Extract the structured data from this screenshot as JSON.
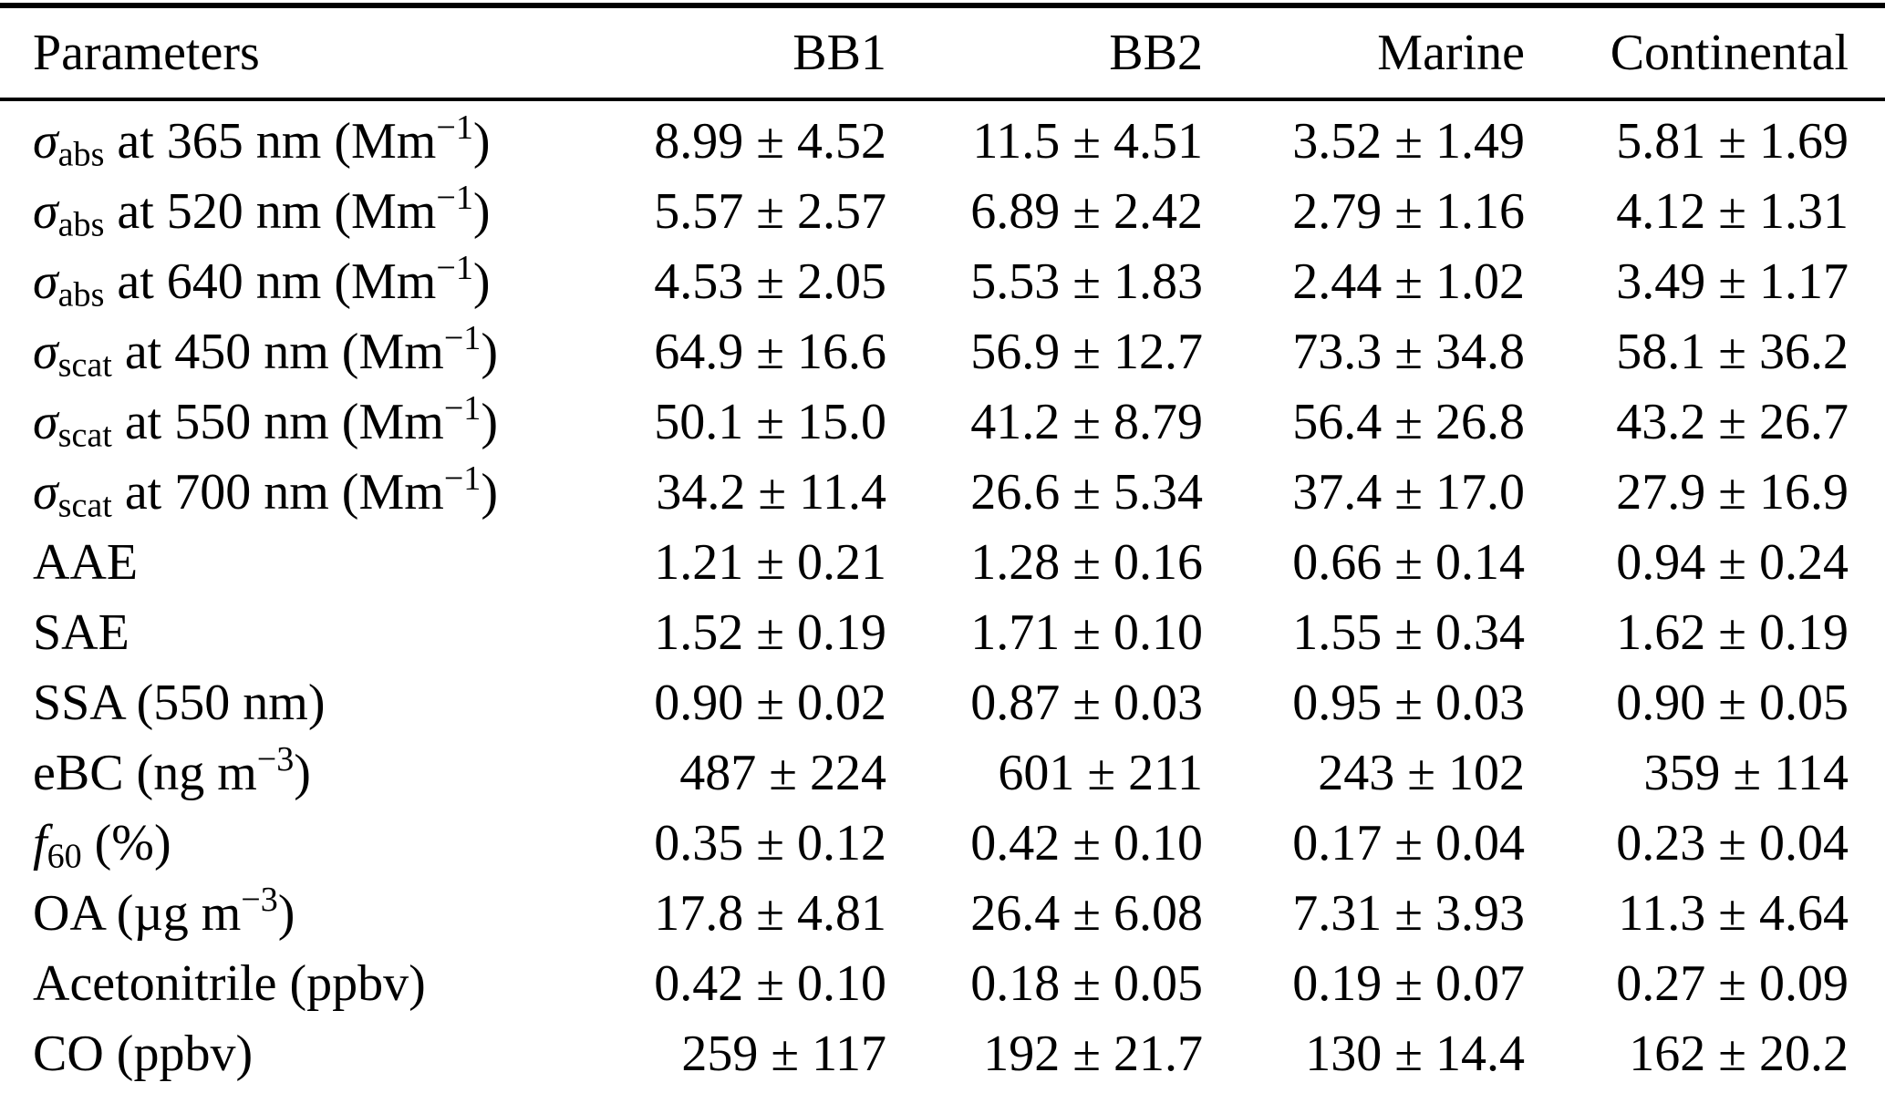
{
  "page": {
    "background_color": "#ffffff",
    "text_color": "#000000",
    "rule_color": "#000000"
  },
  "table": {
    "columns": [
      "Parameters",
      "BB1",
      "BB2",
      "Marine",
      "Continental"
    ],
    "rows": [
      {
        "name": "sigma-abs-365nm",
        "label": [
          {
            "t": "σ",
            "s": "i"
          },
          {
            "t": "abs",
            "s": "sub"
          },
          {
            "t": " at 365 nm (Mm",
            "s": "n"
          },
          {
            "t": "−1",
            "s": "sup"
          },
          {
            "t": ")",
            "s": "n"
          }
        ],
        "values": [
          "8.99 ± 4.52",
          "11.5 ± 4.51",
          "3.52 ± 1.49",
          "5.81 ± 1.69"
        ]
      },
      {
        "name": "sigma-abs-520nm",
        "label": [
          {
            "t": "σ",
            "s": "i"
          },
          {
            "t": "abs",
            "s": "sub"
          },
          {
            "t": " at 520 nm (Mm",
            "s": "n"
          },
          {
            "t": "−1",
            "s": "sup"
          },
          {
            "t": ")",
            "s": "n"
          }
        ],
        "values": [
          "5.57 ± 2.57",
          "6.89 ± 2.42",
          "2.79 ± 1.16",
          "4.12 ± 1.31"
        ]
      },
      {
        "name": "sigma-abs-640nm",
        "label": [
          {
            "t": "σ",
            "s": "i"
          },
          {
            "t": "abs",
            "s": "sub"
          },
          {
            "t": " at 640 nm (Mm",
            "s": "n"
          },
          {
            "t": "−1",
            "s": "sup"
          },
          {
            "t": ")",
            "s": "n"
          }
        ],
        "values": [
          "4.53 ± 2.05",
          "5.53 ± 1.83",
          "2.44 ± 1.02",
          "3.49 ± 1.17"
        ]
      },
      {
        "name": "sigma-scat-450nm",
        "label": [
          {
            "t": "σ",
            "s": "i"
          },
          {
            "t": "scat",
            "s": "sub"
          },
          {
            "t": " at 450 nm (Mm",
            "s": "n"
          },
          {
            "t": "−1",
            "s": "sup"
          },
          {
            "t": ")",
            "s": "n"
          }
        ],
        "values": [
          "64.9 ± 16.6",
          "56.9 ± 12.7",
          "73.3 ± 34.8",
          "58.1 ± 36.2"
        ]
      },
      {
        "name": "sigma-scat-550nm",
        "label": [
          {
            "t": "σ",
            "s": "i"
          },
          {
            "t": "scat",
            "s": "sub"
          },
          {
            "t": " at 550 nm (Mm",
            "s": "n"
          },
          {
            "t": "−1",
            "s": "sup"
          },
          {
            "t": ")",
            "s": "n"
          }
        ],
        "values": [
          "50.1 ± 15.0",
          "41.2 ± 8.79",
          "56.4 ± 26.8",
          "43.2 ± 26.7"
        ]
      },
      {
        "name": "sigma-scat-700nm",
        "label": [
          {
            "t": "σ",
            "s": "i"
          },
          {
            "t": "scat",
            "s": "sub"
          },
          {
            "t": " at 700 nm (Mm",
            "s": "n"
          },
          {
            "t": "−1",
            "s": "sup"
          },
          {
            "t": ")",
            "s": "n"
          }
        ],
        "values": [
          "34.2 ± 11.4",
          "26.6 ± 5.34",
          "37.4 ± 17.0",
          "27.9 ± 16.9"
        ]
      },
      {
        "name": "aae",
        "label": [
          {
            "t": "AAE",
            "s": "n"
          }
        ],
        "values": [
          "1.21 ± 0.21",
          "1.28 ± 0.16",
          "0.66 ± 0.14",
          "0.94 ± 0.24"
        ]
      },
      {
        "name": "sae",
        "label": [
          {
            "t": "SAE",
            "s": "n"
          }
        ],
        "values": [
          "1.52 ± 0.19",
          "1.71 ± 0.10",
          "1.55 ± 0.34",
          "1.62 ± 0.19"
        ]
      },
      {
        "name": "ssa-550nm",
        "label": [
          {
            "t": "SSA (550 nm)",
            "s": "n"
          }
        ],
        "values": [
          "0.90 ± 0.02",
          "0.87 ± 0.03",
          "0.95 ± 0.03",
          "0.90 ± 0.05"
        ]
      },
      {
        "name": "ebc",
        "label": [
          {
            "t": "eBC (ng m",
            "s": "n"
          },
          {
            "t": "−3",
            "s": "sup"
          },
          {
            "t": ")",
            "s": "n"
          }
        ],
        "values": [
          "487 ± 224",
          "601 ± 211",
          "243 ± 102",
          "359 ± 114"
        ]
      },
      {
        "name": "f60",
        "label": [
          {
            "t": "f",
            "s": "i"
          },
          {
            "t": "60",
            "s": "sub"
          },
          {
            "t": " (%)",
            "s": "n"
          }
        ],
        "values": [
          "0.35 ± 0.12",
          "0.42 ± 0.10",
          "0.17 ± 0.04",
          "0.23 ± 0.04"
        ]
      },
      {
        "name": "oa",
        "label": [
          {
            "t": "OA (µg m",
            "s": "n"
          },
          {
            "t": "−3",
            "s": "sup"
          },
          {
            "t": ")",
            "s": "n"
          }
        ],
        "values": [
          "17.8 ± 4.81",
          "26.4 ± 6.08",
          "7.31 ± 3.93",
          "11.3 ± 4.64"
        ]
      },
      {
        "name": "acetonitrile",
        "label": [
          {
            "t": "Acetonitrile (ppbv)",
            "s": "n"
          }
        ],
        "values": [
          "0.42 ± 0.10",
          "0.18 ± 0.05",
          "0.19 ± 0.07",
          "0.27 ± 0.09"
        ]
      },
      {
        "name": "co",
        "label": [
          {
            "t": "CO (ppbv)",
            "s": "n"
          }
        ],
        "values": [
          "259 ± 117",
          "192 ± 21.7",
          "130 ± 14.4",
          "162 ± 20.2"
        ]
      }
    ]
  }
}
